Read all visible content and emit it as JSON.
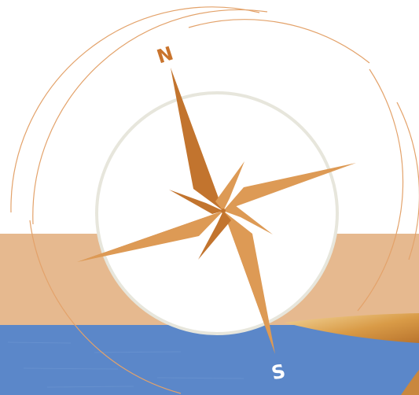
{
  "compass": {
    "north_label": "N",
    "south_label": "S"
  },
  "colors": {
    "background": "#ffffff",
    "sand_band": "#e6b98f",
    "sea": "#5b87c9",
    "sea_dark": "#4f79bb",
    "outer_ring": "#e3a26a",
    "inner_ring": "#e7e6dc",
    "star_light": "#dd9a55",
    "star_dark": "#c2742e",
    "label": "#c9742d",
    "south_label": "#ffffff",
    "paper_edge": "#d49a4e"
  }
}
